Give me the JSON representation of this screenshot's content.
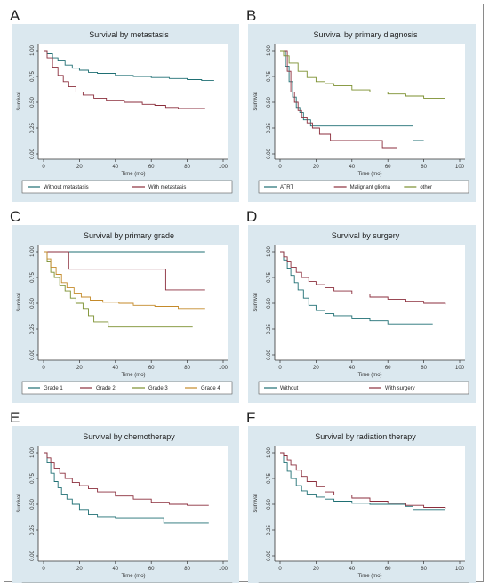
{
  "colors": {
    "panel_bg": "#dbe8ef",
    "plot_bg": "#ffffff",
    "series": [
      "#1f6f73",
      "#8b2e3c",
      "#7b8f2e",
      "#c48a2a"
    ]
  },
  "chart_data": [
    {
      "type": "line",
      "panel_label": "A",
      "title": "Survival by metastasis",
      "xlabel": "Time (mo)",
      "ylabel": "Survival",
      "xlim": [
        0,
        100
      ],
      "ylim": [
        0,
        1
      ],
      "x_ticks": [
        "0",
        "20",
        "40",
        "60",
        "80",
        "100"
      ],
      "y_ticks": [
        "0.00",
        "0.25",
        "0.50",
        "0.75",
        "1.00"
      ],
      "series": [
        {
          "name": "Without metastasis",
          "points": [
            [
              0,
              1
            ],
            [
              2,
              0.97
            ],
            [
              5,
              0.93
            ],
            [
              8,
              0.9
            ],
            [
              12,
              0.86
            ],
            [
              16,
              0.83
            ],
            [
              20,
              0.81
            ],
            [
              25,
              0.79
            ],
            [
              30,
              0.78
            ],
            [
              40,
              0.76
            ],
            [
              50,
              0.75
            ],
            [
              60,
              0.74
            ],
            [
              70,
              0.73
            ],
            [
              80,
              0.72
            ],
            [
              88,
              0.71
            ],
            [
              95,
              0.71
            ]
          ]
        },
        {
          "name": "With metastasis",
          "points": [
            [
              0,
              1
            ],
            [
              2,
              0.93
            ],
            [
              5,
              0.84
            ],
            [
              8,
              0.76
            ],
            [
              11,
              0.7
            ],
            [
              14,
              0.65
            ],
            [
              18,
              0.6
            ],
            [
              22,
              0.57
            ],
            [
              28,
              0.54
            ],
            [
              35,
              0.52
            ],
            [
              45,
              0.5
            ],
            [
              55,
              0.48
            ],
            [
              62,
              0.47
            ],
            [
              68,
              0.45
            ],
            [
              75,
              0.44
            ],
            [
              90,
              0.44
            ]
          ]
        }
      ]
    },
    {
      "type": "line",
      "panel_label": "B",
      "title": "Survival by primary diagnosis",
      "xlabel": "Time (mo)",
      "ylabel": "Survival",
      "xlim": [
        0,
        100
      ],
      "ylim": [
        0,
        1
      ],
      "x_ticks": [
        "0",
        "20",
        "40",
        "60",
        "80",
        "100"
      ],
      "y_ticks": [
        "0.00",
        "0.25",
        "0.50",
        "0.75",
        "1.00"
      ],
      "series": [
        {
          "name": "ATRT",
          "points": [
            [
              0,
              1
            ],
            [
              3,
              0.85
            ],
            [
              5,
              0.7
            ],
            [
              7,
              0.55
            ],
            [
              9,
              0.45
            ],
            [
              11,
              0.4
            ],
            [
              13,
              0.33
            ],
            [
              15,
              0.33
            ],
            [
              17,
              0.27
            ],
            [
              70,
              0.27
            ],
            [
              74,
              0.13
            ],
            [
              80,
              0.13
            ]
          ]
        },
        {
          "name": "Malignant glioma",
          "points": [
            [
              0,
              1
            ],
            [
              4,
              0.8
            ],
            [
              6,
              0.6
            ],
            [
              8,
              0.5
            ],
            [
              10,
              0.42
            ],
            [
              12,
              0.35
            ],
            [
              15,
              0.3
            ],
            [
              18,
              0.25
            ],
            [
              22,
              0.19
            ],
            [
              28,
              0.13
            ],
            [
              55,
              0.13
            ],
            [
              57,
              0.06
            ],
            [
              65,
              0.06
            ]
          ]
        },
        {
          "name": "other",
          "points": [
            [
              0,
              1
            ],
            [
              2,
              0.95
            ],
            [
              5,
              0.88
            ],
            [
              10,
              0.8
            ],
            [
              15,
              0.74
            ],
            [
              20,
              0.7
            ],
            [
              25,
              0.68
            ],
            [
              30,
              0.66
            ],
            [
              40,
              0.62
            ],
            [
              50,
              0.6
            ],
            [
              60,
              0.58
            ],
            [
              70,
              0.56
            ],
            [
              80,
              0.54
            ],
            [
              92,
              0.54
            ]
          ]
        }
      ]
    },
    {
      "type": "line",
      "panel_label": "C",
      "title": "Survival by primary grade",
      "xlabel": "Time (mo)",
      "ylabel": "Survival",
      "xlim": [
        0,
        100
      ],
      "ylim": [
        0,
        1
      ],
      "x_ticks": [
        "0",
        "20",
        "40",
        "60",
        "80",
        "100"
      ],
      "y_ticks": [
        "0.00",
        "0.25",
        "0.50",
        "0.75",
        "1.00"
      ],
      "series": [
        {
          "name": "Grade 1",
          "points": [
            [
              0,
              1
            ],
            [
              90,
              1
            ]
          ]
        },
        {
          "name": "Grade 2",
          "points": [
            [
              0,
              1
            ],
            [
              13,
              1
            ],
            [
              14,
              0.83
            ],
            [
              67,
              0.83
            ],
            [
              68,
              0.63
            ],
            [
              90,
              0.63
            ]
          ]
        },
        {
          "name": "Grade 3",
          "points": [
            [
              0,
              1
            ],
            [
              2,
              0.9
            ],
            [
              4,
              0.8
            ],
            [
              6,
              0.75
            ],
            [
              9,
              0.67
            ],
            [
              12,
              0.62
            ],
            [
              15,
              0.55
            ],
            [
              18,
              0.5
            ],
            [
              22,
              0.45
            ],
            [
              25,
              0.38
            ],
            [
              28,
              0.32
            ],
            [
              35,
              0.32
            ],
            [
              36,
              0.27
            ],
            [
              83,
              0.27
            ]
          ]
        },
        {
          "name": "Grade 4",
          "points": [
            [
              0,
              1
            ],
            [
              2,
              0.93
            ],
            [
              4,
              0.85
            ],
            [
              7,
              0.78
            ],
            [
              10,
              0.7
            ],
            [
              13,
              0.65
            ],
            [
              17,
              0.6
            ],
            [
              21,
              0.56
            ],
            [
              26,
              0.53
            ],
            [
              33,
              0.51
            ],
            [
              42,
              0.5
            ],
            [
              50,
              0.48
            ],
            [
              62,
              0.47
            ],
            [
              75,
              0.45
            ],
            [
              90,
              0.45
            ]
          ]
        }
      ]
    },
    {
      "type": "line",
      "panel_label": "D",
      "title": "Survival by surgery",
      "xlabel": "Time (mo)",
      "ylabel": "Survival",
      "xlim": [
        0,
        100
      ],
      "ylim": [
        0,
        1
      ],
      "x_ticks": [
        "0",
        "20",
        "40",
        "60",
        "80",
        "100"
      ],
      "y_ticks": [
        "0.00",
        "0.25",
        "0.50",
        "0.75",
        "1.00"
      ],
      "series": [
        {
          "name": "Without",
          "points": [
            [
              0,
              1
            ],
            [
              2,
              0.92
            ],
            [
              4,
              0.84
            ],
            [
              6,
              0.77
            ],
            [
              8,
              0.7
            ],
            [
              10,
              0.63
            ],
            [
              13,
              0.55
            ],
            [
              16,
              0.48
            ],
            [
              20,
              0.43
            ],
            [
              25,
              0.4
            ],
            [
              30,
              0.38
            ],
            [
              40,
              0.35
            ],
            [
              50,
              0.33
            ],
            [
              60,
              0.3
            ],
            [
              70,
              0.3
            ],
            [
              85,
              0.3
            ]
          ]
        },
        {
          "name": "With surgery",
          "points": [
            [
              0,
              1
            ],
            [
              2,
              0.95
            ],
            [
              4,
              0.9
            ],
            [
              6,
              0.85
            ],
            [
              9,
              0.8
            ],
            [
              12,
              0.75
            ],
            [
              16,
              0.71
            ],
            [
              20,
              0.68
            ],
            [
              25,
              0.65
            ],
            [
              30,
              0.62
            ],
            [
              40,
              0.59
            ],
            [
              50,
              0.56
            ],
            [
              60,
              0.54
            ],
            [
              70,
              0.52
            ],
            [
              80,
              0.5
            ],
            [
              92,
              0.49
            ]
          ]
        }
      ]
    },
    {
      "type": "line",
      "panel_label": "E",
      "title": "Survival by chemotherapy",
      "xlabel": "Time (mo)",
      "ylabel": "Survival",
      "xlim": [
        0,
        100
      ],
      "ylim": [
        0,
        1
      ],
      "x_ticks": [
        "0",
        "20",
        "40",
        "60",
        "80",
        "100"
      ],
      "y_ticks": [
        "0.00",
        "0.25",
        "0.50",
        "0.75",
        "1.00"
      ],
      "series": [
        {
          "name": "Without",
          "points": [
            [
              0,
              1
            ],
            [
              2,
              0.9
            ],
            [
              4,
              0.8
            ],
            [
              6,
              0.72
            ],
            [
              8,
              0.66
            ],
            [
              10,
              0.6
            ],
            [
              13,
              0.55
            ],
            [
              16,
              0.5
            ],
            [
              20,
              0.45
            ],
            [
              25,
              0.4
            ],
            [
              30,
              0.38
            ],
            [
              40,
              0.37
            ],
            [
              66,
              0.37
            ],
            [
              67,
              0.32
            ],
            [
              92,
              0.32
            ]
          ]
        },
        {
          "name": "With chemotherapy",
          "points": [
            [
              0,
              1
            ],
            [
              2,
              0.95
            ],
            [
              4,
              0.9
            ],
            [
              6,
              0.85
            ],
            [
              9,
              0.8
            ],
            [
              12,
              0.75
            ],
            [
              16,
              0.71
            ],
            [
              20,
              0.68
            ],
            [
              25,
              0.65
            ],
            [
              30,
              0.62
            ],
            [
              40,
              0.58
            ],
            [
              50,
              0.55
            ],
            [
              60,
              0.52
            ],
            [
              70,
              0.5
            ],
            [
              80,
              0.49
            ],
            [
              92,
              0.49
            ]
          ]
        }
      ]
    },
    {
      "type": "line",
      "panel_label": "F",
      "title": "Survival by radiation therapy",
      "xlabel": "Time (mo)",
      "ylabel": "Survival",
      "xlim": [
        0,
        100
      ],
      "ylim": [
        0,
        1
      ],
      "x_ticks": [
        "0",
        "20",
        "40",
        "60",
        "80",
        "100"
      ],
      "y_ticks": [
        "0.00",
        "0.25",
        "0.50",
        "0.75",
        "1.00"
      ],
      "series": [
        {
          "name": "Without",
          "points": [
            [
              0,
              1
            ],
            [
              2,
              0.9
            ],
            [
              4,
              0.82
            ],
            [
              6,
              0.75
            ],
            [
              9,
              0.68
            ],
            [
              12,
              0.63
            ],
            [
              15,
              0.6
            ],
            [
              20,
              0.57
            ],
            [
              25,
              0.55
            ],
            [
              30,
              0.53
            ],
            [
              40,
              0.51
            ],
            [
              50,
              0.5
            ],
            [
              60,
              0.5
            ],
            [
              70,
              0.48
            ],
            [
              74,
              0.45
            ],
            [
              92,
              0.45
            ]
          ]
        },
        {
          "name": "With radiation therapy",
          "points": [
            [
              0,
              1
            ],
            [
              2,
              0.97
            ],
            [
              4,
              0.93
            ],
            [
              6,
              0.88
            ],
            [
              9,
              0.83
            ],
            [
              12,
              0.77
            ],
            [
              15,
              0.72
            ],
            [
              20,
              0.67
            ],
            [
              25,
              0.62
            ],
            [
              30,
              0.59
            ],
            [
              40,
              0.56
            ],
            [
              50,
              0.53
            ],
            [
              60,
              0.51
            ],
            [
              70,
              0.49
            ],
            [
              80,
              0.47
            ],
            [
              92,
              0.46
            ]
          ]
        }
      ]
    }
  ]
}
